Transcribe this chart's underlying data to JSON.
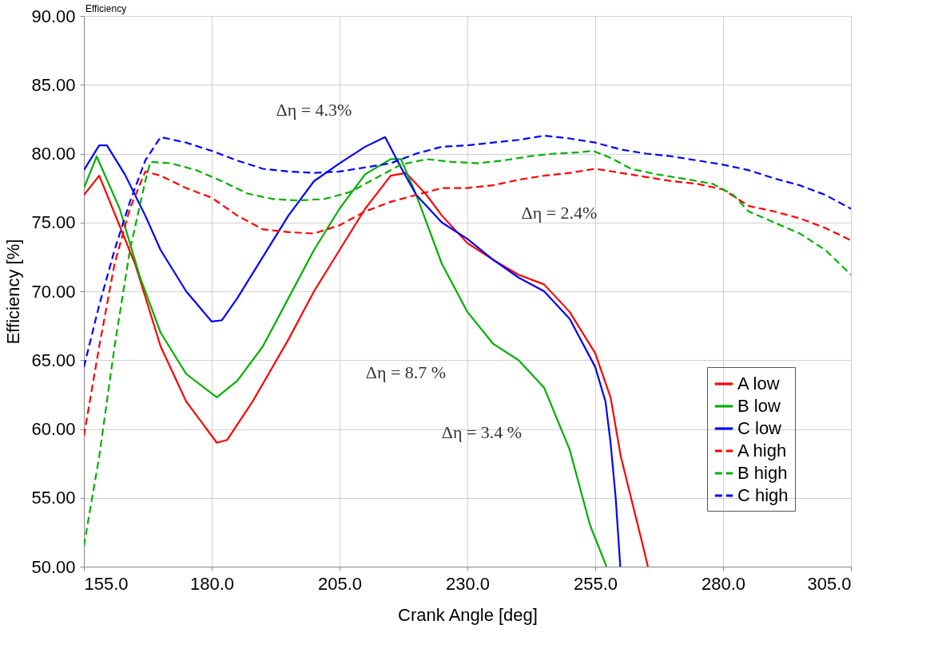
{
  "chart_data": {
    "type": "line",
    "xlabel": "Crank Angle [deg]",
    "ylabel": "Efficiency [%]",
    "xlim": [
      155,
      305
    ],
    "ylim": [
      50,
      90
    ],
    "xticks": [
      {
        "value": 155,
        "label": "155.0"
      },
      {
        "value": 180,
        "label": "180.0"
      },
      {
        "value": 205,
        "label": "205.0"
      },
      {
        "value": 230,
        "label": "230.0"
      },
      {
        "value": 255,
        "label": "255.0"
      },
      {
        "value": 280,
        "label": "280.0"
      },
      {
        "value": 305,
        "label": "305.0"
      }
    ],
    "yticks": [
      {
        "value": 50,
        "label": "50.00"
      },
      {
        "value": 55,
        "label": "55.00"
      },
      {
        "value": 60,
        "label": "60.00"
      },
      {
        "value": 65,
        "label": "65.00"
      },
      {
        "value": 70,
        "label": "70.00"
      },
      {
        "value": 75,
        "label": "75.00"
      },
      {
        "value": 80,
        "label": "80.00"
      },
      {
        "value": 85,
        "label": "85.00"
      },
      {
        "value": 90,
        "label": "90.00"
      }
    ],
    "grid": true,
    "legend": "bottom right",
    "marker": "none",
    "annotations": [
      "Efficiency",
      "Δη = 4.3%",
      "Δη = 2.4%",
      "Δη = 8.7 %",
      "Δη = 3.4 %"
    ],
    "series": [
      {
        "name": "A low",
        "color": "#ff0000",
        "line_style": "solid",
        "x": [
          155,
          158,
          165,
          170,
          175,
          181,
          183,
          188,
          195,
          200,
          205,
          210,
          215,
          218,
          222,
          225,
          230,
          235,
          240,
          245,
          250,
          255,
          258,
          260,
          262,
          264,
          265.3
        ],
        "values": [
          77.0,
          78.4,
          72,
          66,
          62,
          59.0,
          59.2,
          62,
          66.5,
          70,
          73,
          76,
          78.4,
          78.6,
          77,
          75.5,
          73.5,
          72.3,
          71.2,
          70.5,
          68.5,
          65.5,
          62.3,
          58,
          55,
          52,
          50
        ]
      },
      {
        "name": "B low",
        "color": "#00b000",
        "line_style": "solid",
        "x": [
          155,
          157.5,
          162,
          166,
          170,
          175,
          181,
          185,
          190,
          195,
          200,
          205,
          210,
          215,
          217,
          220,
          225,
          230,
          235,
          240,
          245,
          250,
          254,
          257.2
        ],
        "values": [
          77.5,
          79.8,
          76,
          71,
          67,
          64,
          62.3,
          63.5,
          66,
          69.5,
          73,
          76,
          78.5,
          79.6,
          79.6,
          77,
          72,
          68.5,
          66.2,
          65,
          63,
          58.5,
          53,
          50
        ]
      },
      {
        "name": "C low",
        "color": "#0000ff",
        "line_style": "solid",
        "x": [
          155,
          158,
          159.5,
          163,
          167,
          170,
          175,
          180,
          182,
          185,
          190,
          195,
          200,
          205,
          210,
          213.9,
          217,
          220,
          225,
          230,
          235,
          240,
          245,
          250,
          255,
          257,
          258,
          259,
          259.9
        ],
        "values": [
          78.8,
          80.6,
          80.6,
          78.5,
          75.5,
          73,
          70,
          67.8,
          67.9,
          69.5,
          72.5,
          75.5,
          78,
          79.3,
          80.5,
          81.2,
          79,
          77,
          75,
          73.8,
          72.3,
          71,
          70,
          68,
          64.5,
          62,
          59,
          55,
          50
        ]
      },
      {
        "name": "A high",
        "color": "#ff0000",
        "line_style": "dashed",
        "x": [
          155,
          158,
          161,
          164,
          167,
          170,
          175,
          180,
          185,
          190,
          195,
          200,
          205,
          210,
          215,
          220,
          225,
          230,
          235,
          240,
          245,
          250,
          255,
          260,
          265,
          270,
          275,
          280,
          285,
          290,
          295,
          300,
          305
        ],
        "values": [
          59.5,
          66,
          72,
          76,
          78.7,
          78.4,
          77.5,
          76.8,
          75.5,
          74.5,
          74.3,
          74.2,
          74.8,
          75.8,
          76.5,
          77.0,
          77.5,
          77.5,
          77.7,
          78.1,
          78.4,
          78.6,
          78.9,
          78.6,
          78.3,
          78.0,
          77.8,
          77.4,
          76.2,
          75.8,
          75.3,
          74.6,
          73.7
        ]
      },
      {
        "name": "B high",
        "color": "#00b000",
        "line_style": "dashed",
        "x": [
          155,
          158,
          161,
          164,
          167,
          168,
          172,
          177,
          182,
          187,
          192,
          197,
          202,
          207,
          212,
          217,
          222,
          227,
          232,
          237,
          242,
          247,
          252,
          254.5,
          258,
          262,
          267,
          272,
          278,
          282,
          285,
          290,
          295,
          300,
          305
        ],
        "values": [
          51.5,
          58,
          66,
          73,
          78,
          79.4,
          79.3,
          78.8,
          78,
          77.1,
          76.7,
          76.6,
          76.7,
          77.2,
          78.2,
          79.2,
          79.6,
          79.4,
          79.3,
          79.5,
          79.8,
          80.0,
          80.1,
          80.2,
          79.7,
          78.9,
          78.5,
          78.2,
          77.8,
          77.0,
          75.8,
          75.0,
          74.2,
          73.0,
          71.2
        ]
      },
      {
        "name": "C high",
        "color": "#0000ff",
        "line_style": "dashed",
        "x": [
          155,
          158,
          161,
          164,
          167,
          170,
          175,
          180,
          185,
          190,
          195,
          200,
          205,
          210,
          215,
          220,
          225,
          230,
          235,
          240,
          245,
          250,
          255,
          260,
          265,
          270,
          275,
          280,
          285,
          290,
          295,
          300,
          305
        ],
        "values": [
          64.5,
          69,
          73,
          76.5,
          79.5,
          81.2,
          80.8,
          80.2,
          79.5,
          78.9,
          78.7,
          78.6,
          78.7,
          79.0,
          79.3,
          80.0,
          80.5,
          80.6,
          80.8,
          81.0,
          81.3,
          81.1,
          80.8,
          80.3,
          80.0,
          79.8,
          79.5,
          79.2,
          78.8,
          78.2,
          77.7,
          77.0,
          76.0
        ]
      }
    ]
  }
}
